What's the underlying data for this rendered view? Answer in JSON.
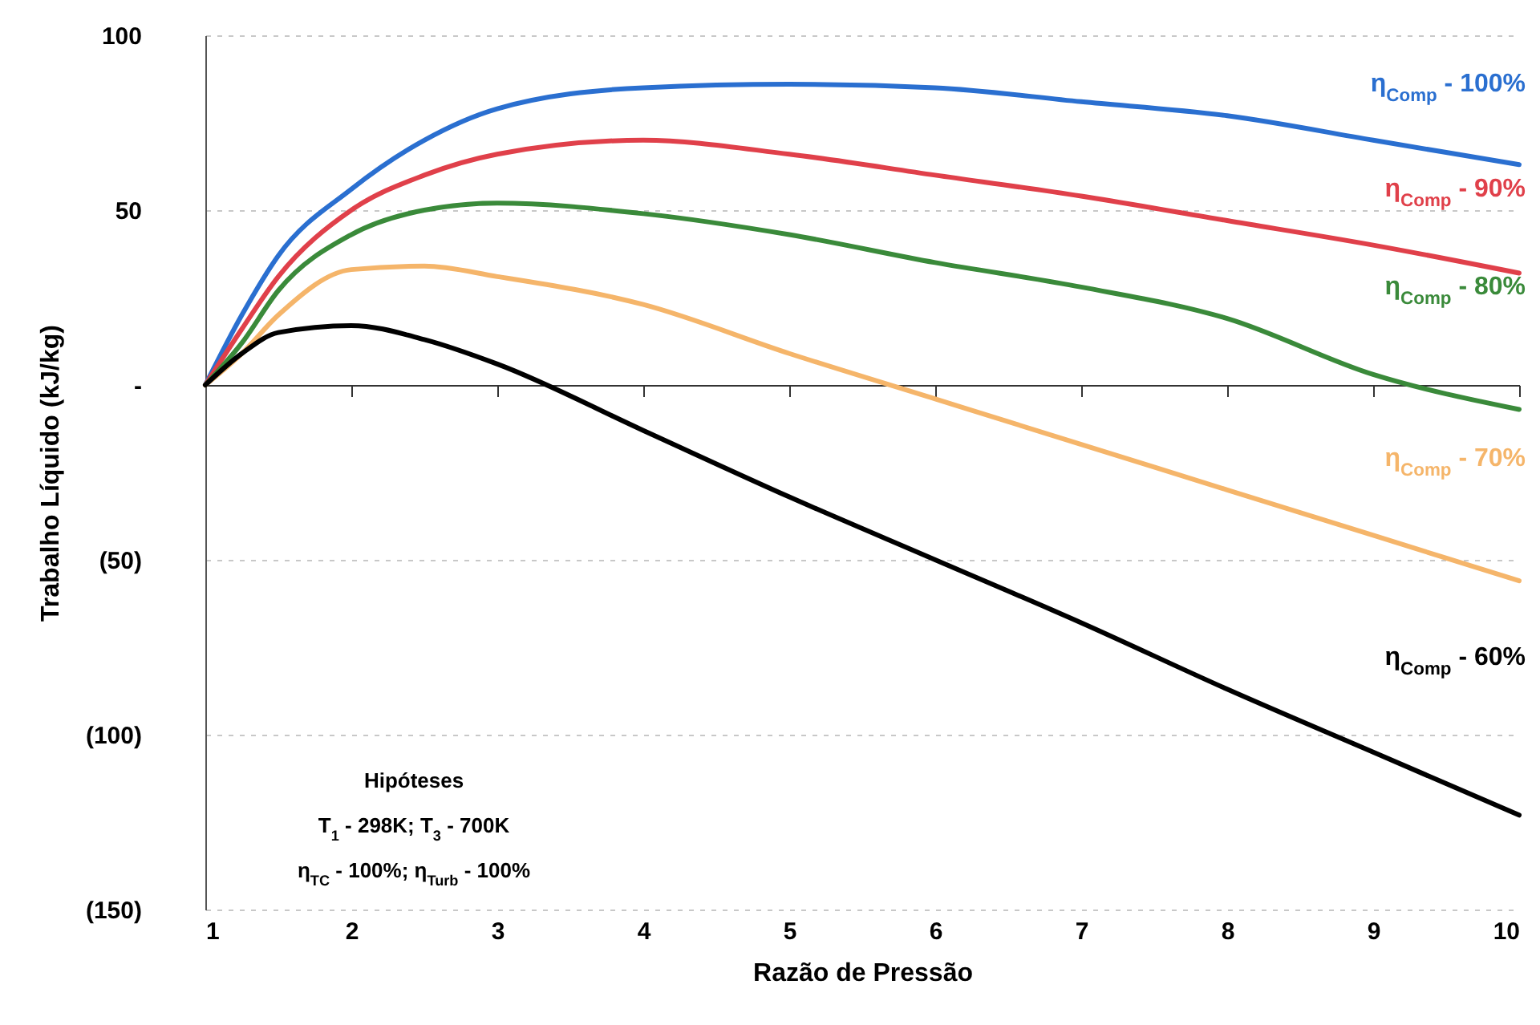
{
  "chart_data": {
    "type": "line",
    "xlabel": "Razão de Pressão",
    "ylabel": "Trabalho Líquido (kJ/kg)",
    "x": [
      1,
      1.25,
      1.5,
      2,
      2.5,
      3,
      4,
      5,
      6,
      7,
      8,
      9,
      10
    ],
    "series": [
      {
        "name": "η$_{Comp}$ - 100%",
        "color": "#2a6fd0",
        "values": [
          0,
          20,
          37,
          56,
          70,
          79,
          85,
          86,
          85,
          81,
          77,
          70,
          63
        ]
      },
      {
        "name": "η$_{Comp}$ - 90%",
        "color": "#e0404a",
        "values": [
          0,
          16,
          31,
          50,
          60,
          66,
          70,
          66,
          60,
          54,
          47,
          40,
          32
        ]
      },
      {
        "name": "η$_{Comp}$ - 80%",
        "color": "#3a8a3a",
        "values": [
          0,
          12,
          27,
          43,
          50,
          52,
          49,
          43,
          35,
          28,
          19,
          3,
          -7
        ]
      },
      {
        "name": "η$_{Comp}$ - 70%",
        "color": "#f5b56a",
        "values": [
          0,
          9,
          20,
          33,
          34,
          31,
          23,
          9,
          -4,
          -17,
          -30,
          -43,
          -56
        ]
      },
      {
        "name": "η$_{Comp}$ - 60%",
        "color": "#000000",
        "values": [
          0,
          9,
          15,
          17,
          13,
          6,
          -13,
          -32,
          -50,
          -68,
          -87,
          -105,
          -123
        ]
      }
    ],
    "xlim": [
      1,
      10
    ],
    "xticks": [
      1,
      2,
      3,
      4,
      5,
      6,
      7,
      8,
      9,
      10
    ],
    "ylim": [
      -150,
      100
    ],
    "yticks": [
      {
        "value": -150,
        "label": "(150)"
      },
      {
        "value": -100,
        "label": "(100)"
      },
      {
        "value": -50,
        "label": "(50)"
      },
      {
        "value": 0,
        "label": "-"
      },
      50,
      100
    ],
    "grid": "y",
    "legend": false,
    "marker": "none",
    "line_style": "solid",
    "annotations": [
      "Hipóteses",
      "T$_{1}$ - 298K; T$_{3}$  - 700K",
      "η$_{TC}$ - 100%; η$_{Turb}$ - 100%"
    ]
  }
}
